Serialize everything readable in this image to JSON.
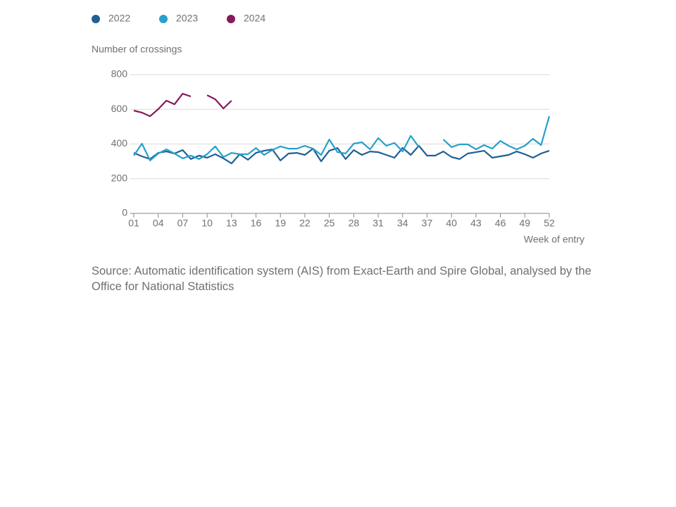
{
  "chart_data": {
    "type": "line",
    "y_label": "Number of crossings",
    "x_label": "Week of entry",
    "source": "Source: Automatic identification system (AIS) from Exact-Earth and Spire Global, analysed by the Office for National Statistics",
    "x": [
      1,
      2,
      3,
      4,
      5,
      6,
      7,
      8,
      9,
      10,
      11,
      12,
      13,
      14,
      15,
      16,
      17,
      18,
      19,
      20,
      21,
      22,
      23,
      24,
      25,
      26,
      27,
      28,
      29,
      30,
      31,
      32,
      33,
      34,
      35,
      36,
      37,
      38,
      39,
      40,
      41,
      42,
      43,
      44,
      45,
      46,
      47,
      48,
      49,
      50,
      51,
      52
    ],
    "xlim": [
      1,
      52
    ],
    "xticks": [
      {
        "value": 1,
        "label": "01"
      },
      {
        "value": 4,
        "label": "04"
      },
      {
        "value": 7,
        "label": "07"
      },
      {
        "value": 10,
        "label": "10"
      },
      13,
      16,
      19,
      22,
      25,
      28,
      31,
      34,
      37,
      40,
      43,
      46,
      49,
      52
    ],
    "ylim": [
      0,
      800
    ],
    "yticks": [
      0,
      200,
      400,
      600,
      800
    ],
    "grid": true,
    "legend": "top-left",
    "series": [
      {
        "name": "2022",
        "color": "#206095",
        "values": [
          349,
          329,
          313,
          349,
          357,
          345,
          365,
          313,
          333,
          321,
          341,
          317,
          288,
          341,
          309,
          349,
          361,
          369,
          305,
          345,
          349,
          337,
          373,
          300,
          361,
          377,
          313,
          365,
          337,
          357,
          353,
          337,
          321,
          378,
          337,
          390,
          333,
          333,
          357,
          325,
          313,
          345,
          353,
          361,
          321,
          329,
          337,
          357,
          341,
          321,
          345,
          361
        ]
      },
      {
        "name": "2023",
        "color": "#27a0cc",
        "values": [
          333,
          402,
          305,
          345,
          369,
          345,
          317,
          333,
          313,
          341,
          386,
          325,
          349,
          341,
          341,
          377,
          337,
          365,
          386,
          373,
          373,
          390,
          373,
          337,
          426,
          353,
          345,
          402,
          410,
          369,
          434,
          390,
          406,
          357,
          447,
          382,
          null,
          null,
          426,
          382,
          398,
          398,
          369,
          394,
          373,
          418,
          390,
          369,
          390,
          430,
          394,
          560
        ]
      },
      {
        "name": "2024",
        "color": "#871a5b",
        "values": [
          593,
          581,
          560,
          601,
          650,
          629,
          690,
          674,
          null,
          682,
          658,
          605,
          650,
          null,
          null,
          null,
          null,
          null,
          null,
          null,
          null,
          null,
          null,
          null,
          null,
          null,
          null,
          null,
          null,
          null,
          null,
          null,
          null,
          null,
          null,
          null,
          null,
          null,
          null,
          null,
          null,
          null,
          null,
          null,
          null,
          null,
          null,
          null,
          null,
          null,
          null,
          null
        ]
      }
    ]
  }
}
